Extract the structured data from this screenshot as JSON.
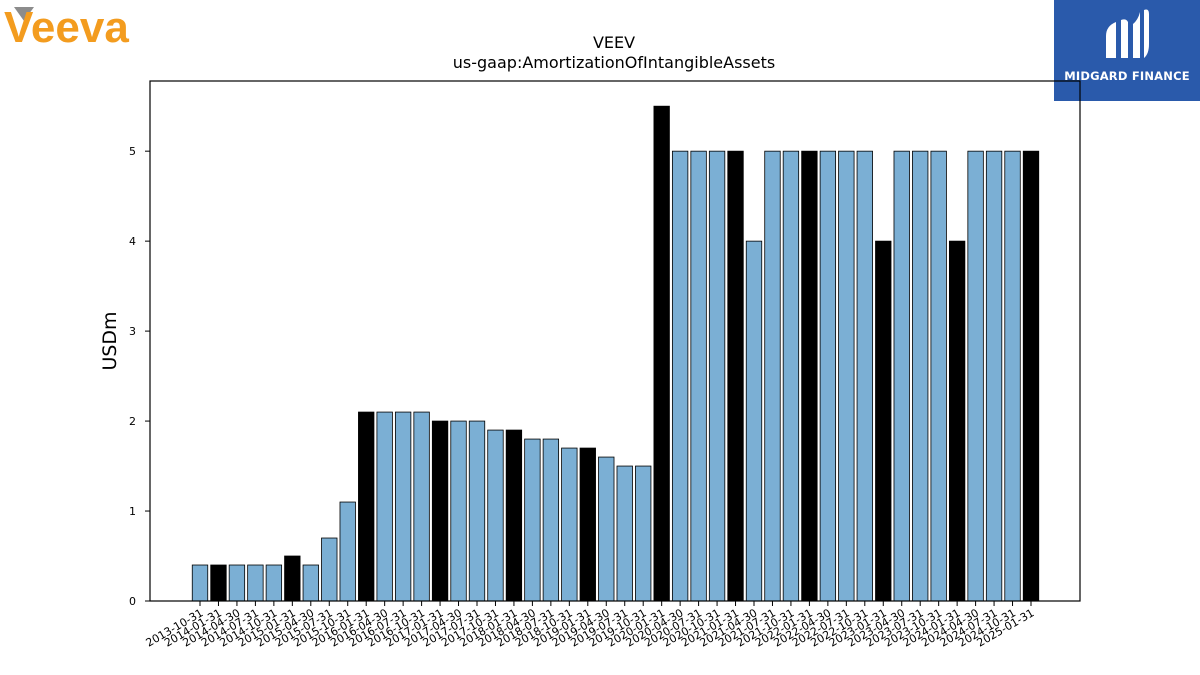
{
  "logos": {
    "veeva": {
      "text": "Veeva",
      "color": "#f39c1f"
    },
    "midgard": {
      "text": "MIDGARD FINANCE",
      "color": "#2a5aab"
    }
  },
  "chart_data": {
    "type": "bar",
    "title": "VEEV",
    "subtitle": "us-gaap:AmortizationOfIntangibleAssets",
    "xlabel": "",
    "ylabel": "USDm",
    "ylim": [
      0,
      5.78
    ],
    "yticks": [
      0,
      1,
      2,
      3,
      4,
      5
    ],
    "grid": false,
    "legend": "none",
    "colors": {
      "quarterly": "#7bafd4",
      "annual": "#000000",
      "edge": "#000000"
    },
    "categories": [
      "2013-10-31",
      "2014-01-31",
      "2014-04-30",
      "2014-07-31",
      "2014-10-31",
      "2015-01-31",
      "2015-04-30",
      "2015-07-31",
      "2015-10-31",
      "2016-01-31",
      "2016-04-30",
      "2016-07-31",
      "2016-10-31",
      "2017-01-31",
      "2017-04-30",
      "2017-07-31",
      "2017-10-31",
      "2018-01-31",
      "2018-04-30",
      "2018-07-31",
      "2018-10-31",
      "2019-01-31",
      "2019-04-30",
      "2019-07-31",
      "2019-10-31",
      "2020-01-31",
      "2020-04-30",
      "2020-07-31",
      "2020-10-31",
      "2021-01-31",
      "2021-04-30",
      "2021-07-31",
      "2021-10-31",
      "2022-01-31",
      "2022-04-30",
      "2022-07-31",
      "2022-10-31",
      "2023-01-31",
      "2023-04-30",
      "2023-07-31",
      "2023-10-31",
      "2024-01-31",
      "2024-04-30",
      "2024-07-31",
      "2024-10-31",
      "2025-01-31"
    ],
    "values": [
      0.4,
      0.4,
      0.4,
      0.4,
      0.4,
      0.5,
      0.4,
      0.7,
      1.1,
      2.1,
      2.1,
      2.1,
      2.1,
      2.0,
      2.0,
      2.0,
      1.9,
      1.9,
      1.8,
      1.8,
      1.7,
      1.7,
      1.6,
      1.5,
      1.5,
      5.5,
      5.0,
      5.0,
      5.0,
      5.0,
      4.0,
      5.0,
      5.0,
      5.0,
      5.0,
      5.0,
      5.0,
      4.0,
      5.0,
      5.0,
      5.0,
      4.0,
      5.0,
      5.0,
      5.0,
      5.0
    ],
    "annual": [
      false,
      true,
      false,
      false,
      false,
      true,
      false,
      false,
      false,
      true,
      false,
      false,
      false,
      true,
      false,
      false,
      false,
      true,
      false,
      false,
      false,
      true,
      false,
      false,
      false,
      true,
      false,
      false,
      false,
      true,
      false,
      false,
      false,
      true,
      false,
      false,
      false,
      true,
      false,
      false,
      false,
      true,
      false,
      false,
      false,
      true
    ]
  }
}
